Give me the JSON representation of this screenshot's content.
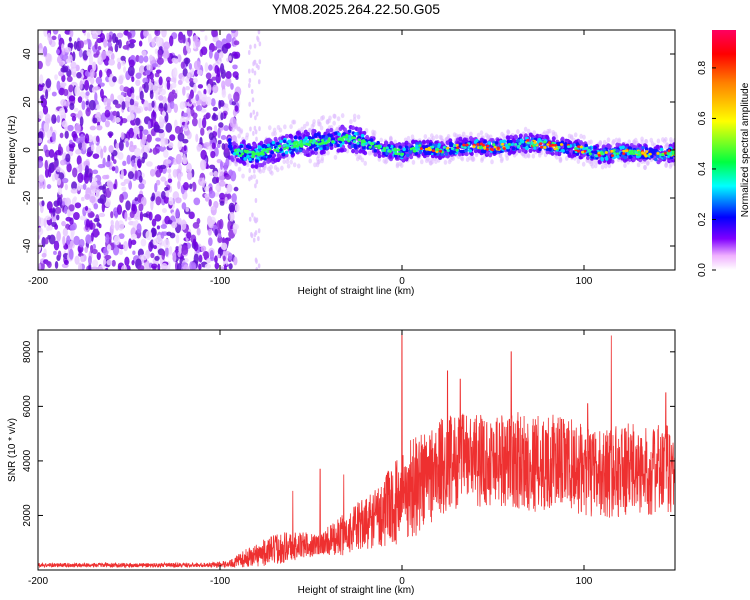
{
  "title": "YM08.2025.264.22.50.G05",
  "colors": {
    "signal_line": "#ee3030",
    "sparse_noise": "#8a2be2",
    "frame": "#000000"
  },
  "chart_data": [
    {
      "type": "heatmap",
      "xlabel": "Height of straight line (km)",
      "ylabel": "Frequency (Hz)",
      "xlim": [
        -200,
        150
      ],
      "ylim": [
        -50,
        50
      ],
      "xticks": [
        -200,
        -100,
        0,
        100
      ],
      "yticks": [
        -40,
        -20,
        0,
        20,
        40
      ],
      "colorbar": {
        "label": "Normalized spectral amplitude",
        "range": [
          0,
          0.95
        ],
        "ticks": [
          0.0,
          0.2,
          0.4,
          0.6,
          0.8
        ],
        "tick_labels": [
          "0.0",
          "0.2",
          "0.4",
          "0.6",
          "0.8"
        ],
        "colormap": [
          "#ffffff",
          "#ff80ff",
          "#7f00ff",
          "#0000ff",
          "#00ffff",
          "#00ff00",
          "#ffff00",
          "#ff8000",
          "#ff0000",
          "#ff0080"
        ]
      },
      "description_series": {
        "noise_region_x": [
          -200,
          -95
        ],
        "signal_start_x": -95,
        "signal_track": [
          [
            -95,
            2
          ],
          [
            -90,
            -1
          ],
          [
            -80,
            -2
          ],
          [
            -70,
            0
          ],
          [
            -60,
            2
          ],
          [
            -50,
            3
          ],
          [
            -40,
            4
          ],
          [
            -30,
            5
          ],
          [
            -20,
            3
          ],
          [
            -10,
            0
          ],
          [
            0,
            -1
          ],
          [
            10,
            1
          ],
          [
            20,
            0
          ],
          [
            30,
            1
          ],
          [
            40,
            2
          ],
          [
            50,
            1
          ],
          [
            60,
            2
          ],
          [
            70,
            3
          ],
          [
            80,
            2
          ],
          [
            90,
            1
          ],
          [
            100,
            0
          ],
          [
            110,
            -2
          ],
          [
            120,
            -1
          ],
          [
            130,
            -1
          ],
          [
            140,
            -2
          ],
          [
            150,
            -1
          ]
        ]
      }
    },
    {
      "type": "line",
      "xlabel": "Height of straight line (km)",
      "ylabel": "SNR (10 * v/v)",
      "xlim": [
        -200,
        150
      ],
      "ylim": [
        0,
        8800
      ],
      "xticks": [
        -200,
        -100,
        0,
        100
      ],
      "yticks": [
        2000,
        4000,
        6000,
        8000
      ],
      "series": [
        {
          "name": "SNR",
          "envelope_x": [
            -200,
            -150,
            -110,
            -95,
            -85,
            -75,
            -65,
            -55,
            -45,
            -35,
            -25,
            -15,
            -5,
            5,
            15,
            25,
            35,
            45,
            55,
            65,
            75,
            85,
            95,
            105,
            115,
            125,
            135,
            145,
            150
          ],
          "envelope_mean": [
            180,
            180,
            180,
            220,
            450,
            650,
            850,
            900,
            950,
            1200,
            1550,
            1900,
            2400,
            3000,
            3500,
            3900,
            4100,
            4000,
            4100,
            4000,
            3900,
            4000,
            3800,
            3500,
            3600,
            3700,
            3600,
            3700,
            3600
          ],
          "envelope_spread": [
            80,
            80,
            80,
            120,
            350,
            500,
            600,
            500,
            400,
            700,
            900,
            1100,
            1500,
            1900,
            1900,
            1800,
            1700,
            1700,
            1800,
            1800,
            1800,
            1700,
            1700,
            1600,
            1700,
            1700,
            1600,
            1700,
            1600
          ],
          "peaks": [
            [
              -60,
              2900
            ],
            [
              -45,
              3700
            ],
            [
              -32,
              3500
            ],
            [
              0,
              8700
            ],
            [
              25,
              7300
            ],
            [
              32,
              7000
            ],
            [
              60,
              8000
            ],
            [
              102,
              6100
            ],
            [
              115,
              8600
            ],
            [
              145,
              6500
            ]
          ]
        }
      ]
    }
  ]
}
